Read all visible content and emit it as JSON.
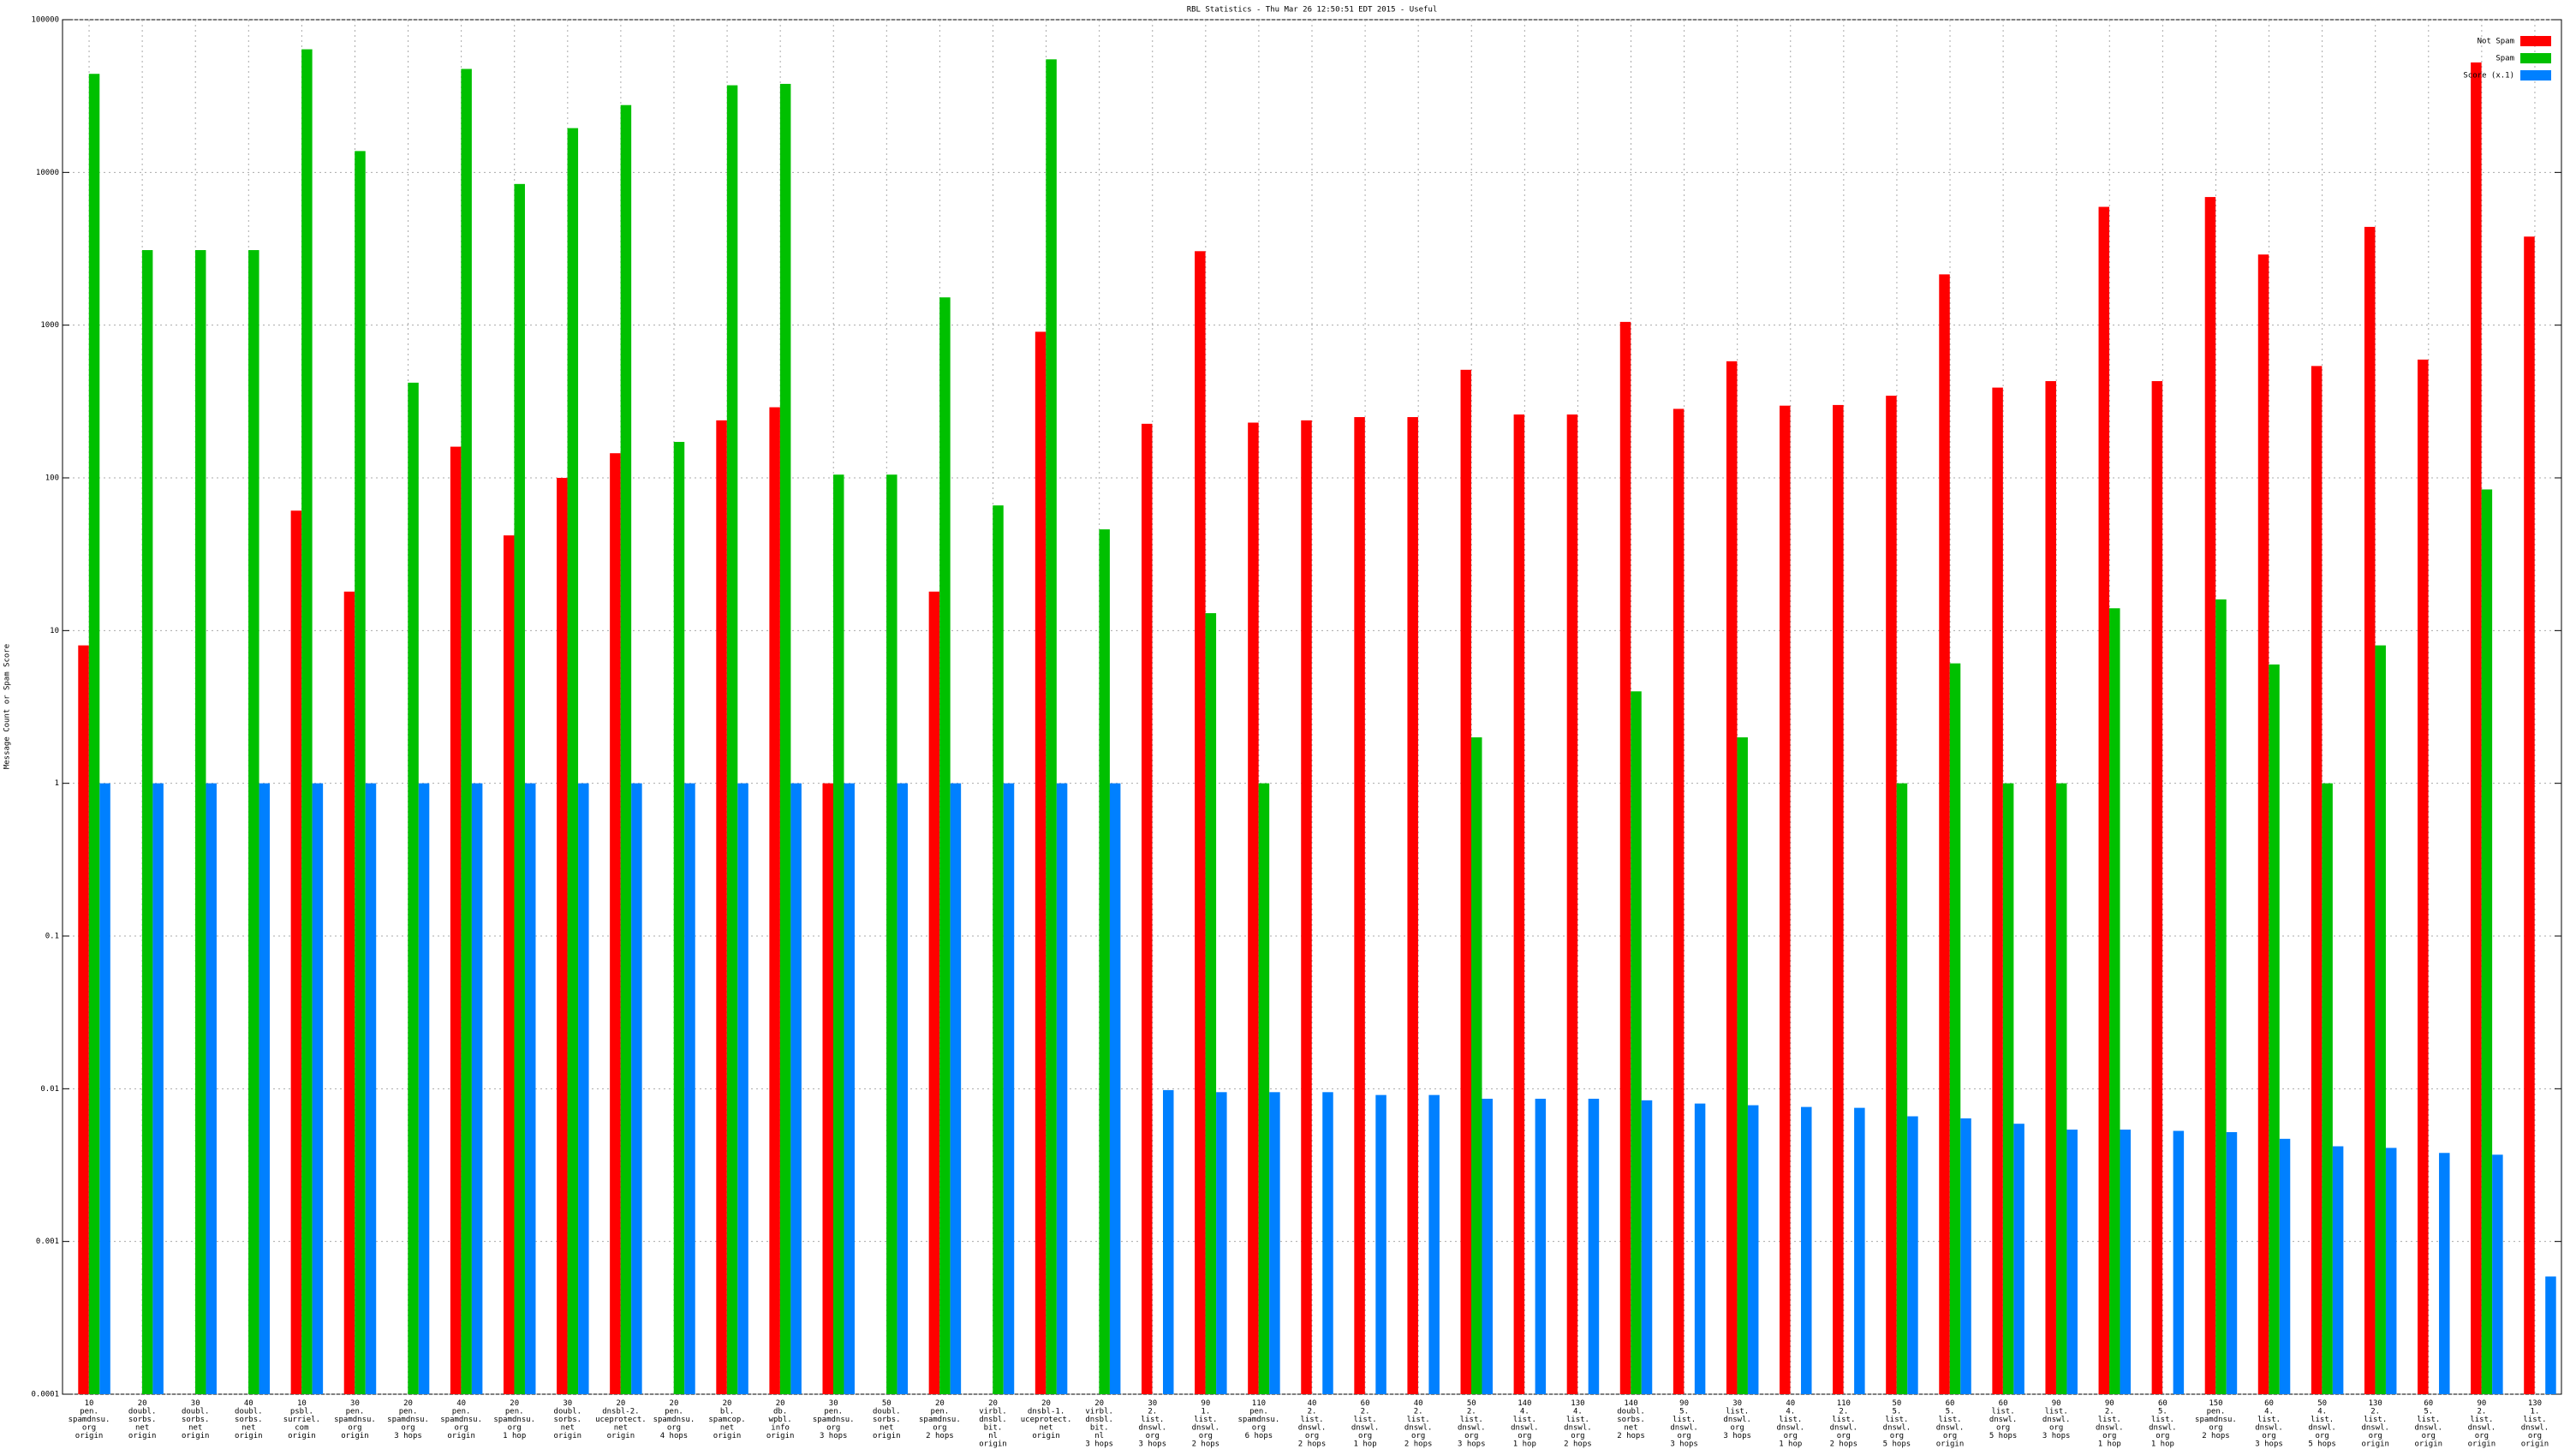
{
  "chart_data": {
    "type": "bar",
    "log_scale": true,
    "grid": true,
    "legend": "top-right",
    "title": "RBL Statistics - Thu Mar 26 12:50:51 EDT 2015 - Useful",
    "ylabel": "Message Count or Spam Score",
    "ylim": [
      0.0001,
      100000
    ],
    "yticks": [
      0.0001,
      0.001,
      0.01,
      0.1,
      1,
      10,
      100,
      1000,
      10000,
      100000
    ],
    "categories": [
      "10\npen.\nspamdnsu.\norg\norigin",
      "20\ndoubl.\nsorbs.\nnet\norigin",
      "30\ndoubl.\nsorbs.\nnet\norigin",
      "40\ndoubl.\nsorbs.\nnet\norigin",
      "10\npsbl.\nsurriel.\ncom\norigin",
      "30\npen.\nspamdnsu.\norg\norigin",
      "20\npen.\nspamdnsu.\norg\n3 hops",
      "40\npen.\nspamdnsu.\norg\norigin",
      "20\npen.\nspamdnsu.\norg\n1 hop",
      "30\ndoubl.\nsorbs.\nnet\norigin",
      "20\ndnsbl-2.\nuceprotect.\nnet\norigin",
      "20\npen.\nspamdnsu.\norg\n4 hops",
      "20\nbl.\nspamcop.\nnet\norigin",
      "20\ndb.\nwpbl.\ninfo\norigin",
      "30\npen.\nspamdnsu.\norg\n3 hops",
      "50\ndoubl.\nsorbs.\nnet\norigin",
      "20\npen.\nspamdnsu.\norg\n2 hops",
      "20\nvirbl.\ndnsbl.\nbit.\nnl\norigin",
      "20\ndnsbl-1.\nuceprotect.\nnet\norigin",
      "20\nvirbl.\ndnsbl.\nbit.\nnl\n3 hops",
      "30\n2.\nlist.\ndnswl.\norg\n3 hops",
      "90\n1.\nlist.\ndnswl.\norg\n2 hops",
      "110\npen.\nspamdnsu.\norg\n6 hops",
      "40\n2.\nlist.\ndnswl.\norg\n2 hops",
      "60\n2.\nlist.\ndnswl.\norg\n1 hop",
      "40\n2.\nlist.\ndnswl.\norg\n2 hops",
      "50\n2.\nlist.\ndnswl.\norg\n3 hops",
      "140\n4.\nlist.\ndnswl.\norg\n1 hop",
      "130\n4.\nlist.\ndnswl.\norg\n2 hops",
      "140\ndoubl.\nsorbs.\nnet\n2 hops",
      "90\n5.\nlist.\ndnswl.\norg\n3 hops",
      "30\nlist.\ndnswl.\norg\n3 hops",
      "40\n4.\nlist.\ndnswl.\norg\n1 hop",
      "110\n2.\nlist.\ndnswl.\norg\n2 hops",
      "50\n5.\nlist.\ndnswl.\norg\n5 hops",
      "60\n5.\nlist.\ndnswl.\norg\norigin",
      "60\nlist.\ndnswl.\norg\n5 hops",
      "90\nlist.\ndnswl.\norg\n3 hops",
      "90\n2.\nlist.\ndnswl.\norg\n1 hop",
      "60\n5.\nlist.\ndnswl.\norg\n1 hop",
      "150\npen.\nspamdnsu.\norg\n2 hops",
      "60\n4.\nlist.\ndnswl.\norg\n3 hops",
      "50\n4.\nlist.\ndnswl.\norg\n5 hops",
      "130\n2.\nlist.\ndnswl.\norg\norigin",
      "60\n5.\nlist.\ndnswl.\norg\norigin",
      "90\n2.\nlist.\ndnswl.\norg\norigin",
      "130\n1.\nlist.\ndnswl.\norg\norigin"
    ],
    "series": [
      {
        "name": "Not Spam",
        "color": "#ff0000",
        "values": [
          8,
          null,
          null,
          null,
          61,
          18,
          null,
          160,
          42,
          100,
          145,
          null,
          238,
          290,
          1,
          null,
          18,
          null,
          905,
          null,
          226,
          3050,
          230,
          238,
          250,
          250,
          510,
          260,
          260,
          1050,
          283,
          580,
          297,
          300,
          345,
          2150,
          390,
          430,
          5950,
          430,
          6900,
          2900,
          540,
          4400,
          595,
          52500,
          3800
        ]
      },
      {
        "name": "Spam",
        "color": "#00c000",
        "values": [
          44200,
          3100,
          3100,
          3100,
          64000,
          13800,
          420,
          47600,
          8400,
          19500,
          27600,
          172,
          37200,
          38000,
          105,
          105,
          1520,
          66,
          55000,
          46,
          null,
          13,
          1,
          null,
          null,
          null,
          2,
          null,
          null,
          4,
          null,
          2,
          null,
          null,
          1,
          6.1,
          1,
          1,
          14,
          null,
          16,
          6,
          1,
          8,
          null,
          84,
          null
        ]
      },
      {
        "name": "Score (x.1)",
        "color": "#0080ff",
        "values": [
          1,
          1,
          1,
          1,
          1,
          1,
          1,
          1,
          1,
          1,
          1,
          1,
          1,
          1,
          1,
          1,
          1,
          1,
          1,
          1,
          0.0098,
          0.0095,
          0.0095,
          0.0095,
          0.0091,
          0.0091,
          0.0086,
          0.0086,
          0.0086,
          0.0084,
          0.008,
          0.0078,
          0.0076,
          0.0075,
          0.0066,
          0.0064,
          0.0059,
          0.0054,
          0.0054,
          0.0053,
          0.0052,
          0.0047,
          0.0042,
          0.0041,
          0.0038,
          0.0037,
          0.00059
        ]
      }
    ]
  }
}
